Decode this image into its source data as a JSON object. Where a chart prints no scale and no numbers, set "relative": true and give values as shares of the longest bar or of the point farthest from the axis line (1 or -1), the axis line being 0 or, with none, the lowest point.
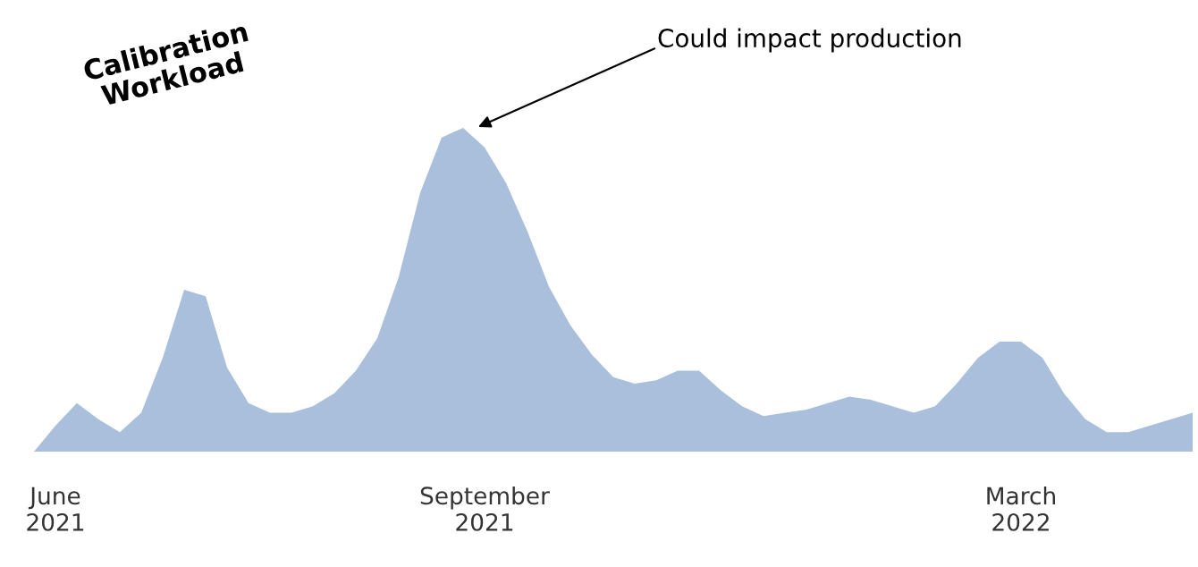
{
  "chart_data": {
    "type": "area",
    "relative": true,
    "title": "Calibration\nWorkload",
    "categories": [
      null,
      "June\n2021",
      null,
      null,
      null,
      null,
      null,
      null,
      null,
      null,
      null,
      null,
      null,
      null,
      null,
      null,
      null,
      null,
      null,
      null,
      null,
      "September\n2021",
      null,
      null,
      null,
      null,
      null,
      null,
      null,
      null,
      null,
      null,
      null,
      null,
      null,
      null,
      null,
      null,
      null,
      null,
      null,
      null,
      null,
      null,
      null,
      null,
      "March\n2022",
      null,
      null,
      null,
      null,
      null,
      null,
      null,
      null
    ],
    "series": [
      {
        "color": "#a9bfdc",
        "values": [
          0,
          0.08,
          0.15,
          0.1,
          0.06,
          0.12,
          0.29,
          0.5,
          0.48,
          0.26,
          0.15,
          0.12,
          0.12,
          0.14,
          0.18,
          0.25,
          0.35,
          0.54,
          0.8,
          0.97,
          1,
          0.94,
          0.83,
          0.68,
          0.51,
          0.39,
          0.3,
          0.23,
          0.21,
          0.22,
          0.25,
          0.25,
          0.19,
          0.14,
          0.11,
          0.12,
          0.13,
          0.15,
          0.17,
          0.16,
          0.14,
          0.12,
          0.14,
          0.21,
          0.29,
          0.34,
          0.34,
          0.29,
          0.18,
          0.1,
          0.06,
          0.06,
          0.08,
          0.1,
          0.12
        ]
      }
    ],
    "annotations": [
      "Could impact production"
    ],
    "grid": false
  }
}
